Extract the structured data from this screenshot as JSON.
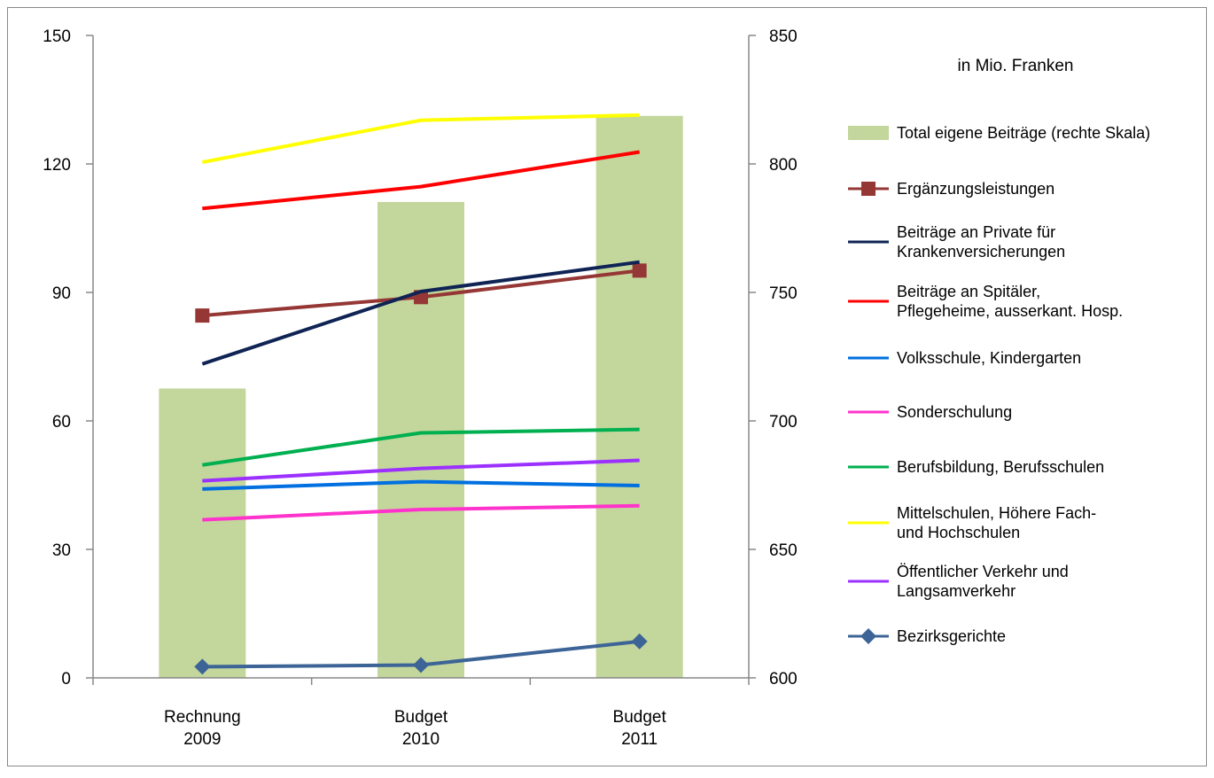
{
  "chart_data": {
    "type": "bar",
    "unit_label": "in Mio. Franken",
    "categories": [
      "Rechnung\n2009",
      "Budget\n2010",
      "Budget\n2011"
    ],
    "y_left": {
      "ylim": [
        0,
        150
      ],
      "ticks": [
        0,
        30,
        60,
        90,
        120,
        150
      ]
    },
    "y_right": {
      "ylim": [
        600,
        850
      ],
      "ticks": [
        600,
        650,
        700,
        750,
        800,
        850
      ]
    },
    "bars": {
      "name": "Total eigene Beiträge (rechte Skala)",
      "axis": "right",
      "color": "#c3d69b",
      "values": [
        712.6,
        785.2,
        818.7
      ]
    },
    "series": [
      {
        "name": "Ergänzungsleistungen",
        "color": "#953735",
        "marker": "square",
        "values": [
          84.6,
          88.9,
          95.1
        ]
      },
      {
        "name": "Beiträge an Private für Krankenversicherungen",
        "color": "#0f2455",
        "marker": "none",
        "values": [
          73.3,
          90.2,
          97.1
        ]
      },
      {
        "name": "Beiträge an Spitäler, Pflegeheime, ausserkant. Hosp.",
        "color": "#ff0000",
        "marker": "none",
        "values": [
          109.6,
          114.7,
          122.8
        ]
      },
      {
        "name": "Volksschule, Kindergarten",
        "color": "#0070e0",
        "marker": "none",
        "values": [
          44.1,
          45.8,
          44.9
        ]
      },
      {
        "name": "Sonderschulung",
        "color": "#ff33cc",
        "marker": "none",
        "values": [
          36.9,
          39.3,
          40.2
        ]
      },
      {
        "name": "Berufsbildung, Berufsschulen",
        "color": "#00b050",
        "marker": "none",
        "values": [
          49.7,
          57.2,
          58.0
        ]
      },
      {
        "name": "Mittelschulen, Höhere Fach- und Hochschulen",
        "color": "#ffff00",
        "marker": "none",
        "values": [
          120.4,
          130.2,
          131.4
        ]
      },
      {
        "name": "Öffentlicher Verkehr und Langsamverkehr",
        "color": "#9b30ff",
        "marker": "none",
        "values": [
          46.0,
          48.9,
          50.8
        ]
      },
      {
        "name": "Bezirksgerichte",
        "color": "#3c6496",
        "marker": "diamond",
        "values": [
          2.6,
          3.0,
          8.5
        ]
      }
    ],
    "legend_placement": "right",
    "grid": false
  }
}
